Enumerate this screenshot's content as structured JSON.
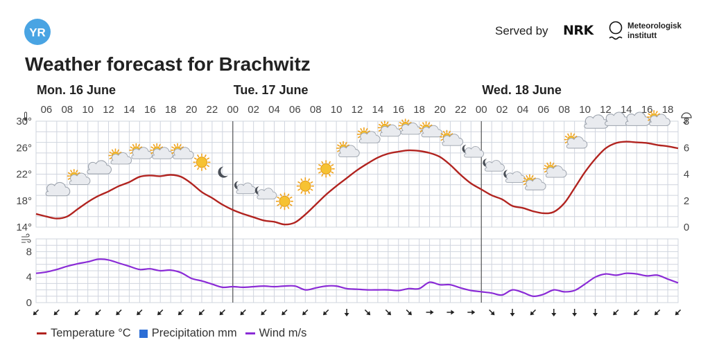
{
  "header": {
    "logo_text": "YR",
    "served_by": "Served by",
    "nrk_logo": "NRK",
    "met_name_line1": "Meteorologisk",
    "met_name_line2": "institutt",
    "title": "Weather forecast for Brachwitz"
  },
  "colors": {
    "temperature": "#b1231f",
    "precipitation": "#2c6ed6",
    "wind": "#8a2bd6",
    "grid": "#cfd4de",
    "logo": "#49a4e3"
  },
  "legend": {
    "temperature": "Temperature °C",
    "precipitation": "Precipitation mm",
    "wind": "Wind m/s"
  },
  "chart_data": {
    "type": "line",
    "days": [
      {
        "label": "Mon. 16 June",
        "start_hour": 5
      },
      {
        "label": "Tue. 17 June",
        "start_hour": 24
      },
      {
        "label": "Wed. 18 June",
        "start_hour": 48
      }
    ],
    "hour_ticks": [
      "06",
      "08",
      "10",
      "12",
      "14",
      "16",
      "18",
      "20",
      "22",
      "00",
      "02",
      "04",
      "06",
      "08",
      "10",
      "12",
      "14",
      "16",
      "18",
      "20",
      "22",
      "00",
      "02",
      "04",
      "06",
      "08",
      "10",
      "12",
      "14",
      "16",
      "18"
    ],
    "hour_tick_positions": [
      6,
      8,
      10,
      12,
      14,
      16,
      18,
      20,
      22,
      24,
      26,
      28,
      30,
      32,
      34,
      36,
      38,
      40,
      42,
      44,
      46,
      48,
      50,
      52,
      54,
      56,
      58,
      60,
      62,
      64,
      66
    ],
    "temperature_panel": {
      "y_ticks_left": [
        "30°",
        "26°",
        "22°",
        "18°",
        "14°"
      ],
      "y_tick_values_left": [
        30,
        26,
        22,
        18,
        14
      ],
      "y_ticks_right": [
        "8",
        "6",
        "4",
        "2",
        "0"
      ],
      "y_tick_values_right": [
        8,
        6,
        4,
        2,
        0
      ],
      "ylim": [
        14,
        30
      ],
      "right_ylim": [
        0,
        8
      ],
      "left_axis_icon": "thermometer-icon",
      "right_axis_icon": "umbrella-icon"
    },
    "wind_panel": {
      "y_ticks": [
        "8",
        "4",
        "0"
      ],
      "y_tick_values": [
        8,
        4,
        0
      ],
      "ylim": [
        0,
        10
      ],
      "axis_icon": "wind-icon"
    },
    "x_range": [
      5,
      67
    ],
    "series": [
      {
        "name": "Temperature °C",
        "unit": "°C",
        "x": [
          5,
          6,
          7,
          8,
          9,
          10,
          11,
          12,
          13,
          14,
          15,
          16,
          17,
          18,
          19,
          20,
          21,
          22,
          23,
          24,
          25,
          26,
          27,
          28,
          29,
          30,
          31,
          32,
          33,
          34,
          35,
          36,
          37,
          38,
          39,
          40,
          41,
          42,
          43,
          44,
          45,
          46,
          47,
          48,
          49,
          50,
          51,
          52,
          53,
          54,
          55,
          56,
          57,
          58,
          59,
          60,
          61,
          62,
          63,
          64,
          65,
          66,
          67
        ],
        "values": [
          16.0,
          15.6,
          15.3,
          15.6,
          16.7,
          17.8,
          18.7,
          19.4,
          20.2,
          20.8,
          21.6,
          21.8,
          21.7,
          21.9,
          21.6,
          20.6,
          19.3,
          18.4,
          17.4,
          16.6,
          16.0,
          15.5,
          15.0,
          14.8,
          14.4,
          14.7,
          15.9,
          17.4,
          18.9,
          20.2,
          21.4,
          22.6,
          23.6,
          24.5,
          25.1,
          25.4,
          25.6,
          25.5,
          25.2,
          24.6,
          23.4,
          21.9,
          20.6,
          19.7,
          18.8,
          18.2,
          17.2,
          16.9,
          16.4,
          16.1,
          16.3,
          17.6,
          19.9,
          22.3,
          24.3,
          25.9,
          26.7,
          26.9,
          26.8,
          26.7,
          26.4,
          26.2,
          25.9
        ]
      },
      {
        "name": "Precipitation mm",
        "unit": "mm",
        "x": [],
        "values": []
      },
      {
        "name": "Wind m/s",
        "unit": "m/s",
        "x": [
          5,
          6,
          7,
          8,
          9,
          10,
          11,
          12,
          13,
          14,
          15,
          16,
          17,
          18,
          19,
          20,
          21,
          22,
          23,
          24,
          25,
          26,
          27,
          28,
          29,
          30,
          31,
          32,
          33,
          34,
          35,
          36,
          37,
          38,
          39,
          40,
          41,
          42,
          43,
          44,
          45,
          46,
          47,
          48,
          49,
          50,
          51,
          52,
          53,
          54,
          55,
          56,
          57,
          58,
          59,
          60,
          61,
          62,
          63,
          64,
          65,
          66,
          67
        ],
        "values": [
          4.6,
          4.8,
          5.2,
          5.7,
          6.1,
          6.4,
          6.8,
          6.7,
          6.2,
          5.7,
          5.2,
          5.3,
          5.0,
          5.1,
          4.7,
          3.8,
          3.4,
          2.9,
          2.4,
          2.5,
          2.4,
          2.5,
          2.6,
          2.5,
          2.6,
          2.6,
          2.0,
          2.3,
          2.6,
          2.6,
          2.2,
          2.1,
          2.0,
          2.0,
          2.0,
          1.9,
          2.2,
          2.2,
          3.2,
          2.8,
          2.8,
          2.3,
          1.9,
          1.7,
          1.5,
          1.2,
          2.0,
          1.6,
          1.0,
          1.3,
          2.0,
          1.7,
          1.9,
          2.9,
          4.0,
          4.5,
          4.3,
          4.6,
          4.5,
          4.2,
          4.3,
          3.7,
          3.1
        ]
      }
    ],
    "weather_symbols": [
      {
        "x": 7,
        "icon": "cloudy-icon",
        "temp_anchor": 19.6
      },
      {
        "x": 9,
        "icon": "partly-cloudy-day-icon",
        "temp_anchor": 21.3
      },
      {
        "x": 11,
        "icon": "cloudy-icon",
        "temp_anchor": 22.9
      },
      {
        "x": 13,
        "icon": "partly-cloudy-day-icon",
        "temp_anchor": 24.4
      },
      {
        "x": 15,
        "icon": "partly-cloudy-day-icon",
        "temp_anchor": 25.2
      },
      {
        "x": 17,
        "icon": "partly-cloudy-day-icon",
        "temp_anchor": 25.2
      },
      {
        "x": 19,
        "icon": "partly-cloudy-day-icon",
        "temp_anchor": 25.2
      },
      {
        "x": 21,
        "icon": "sun-icon",
        "temp_anchor": 23.8
      },
      {
        "x": 23,
        "icon": "moon-icon",
        "temp_anchor": 22.3
      },
      {
        "x": 25,
        "icon": "partly-cloudy-night-icon",
        "temp_anchor": 19.9
      },
      {
        "x": 27,
        "icon": "partly-cloudy-night-icon",
        "temp_anchor": 19.1
      },
      {
        "x": 29,
        "icon": "sun-icon",
        "temp_anchor": 17.9
      },
      {
        "x": 31,
        "icon": "sun-icon",
        "temp_anchor": 20.2
      },
      {
        "x": 33,
        "icon": "sun-icon",
        "temp_anchor": 22.8
      },
      {
        "x": 35,
        "icon": "partly-cloudy-day-icon",
        "temp_anchor": 25.5
      },
      {
        "x": 37,
        "icon": "partly-cloudy-day-icon",
        "temp_anchor": 27.6
      },
      {
        "x": 39,
        "icon": "partly-cloudy-day-icon",
        "temp_anchor": 28.6
      },
      {
        "x": 41,
        "icon": "partly-cloudy-day-icon",
        "temp_anchor": 28.9
      },
      {
        "x": 43,
        "icon": "partly-cloudy-day-icon",
        "temp_anchor": 28.5
      },
      {
        "x": 45,
        "icon": "partly-cloudy-day-icon",
        "temp_anchor": 27.2
      },
      {
        "x": 47,
        "icon": "partly-cloudy-night-icon",
        "temp_anchor": 25.4
      },
      {
        "x": 49,
        "icon": "partly-cloudy-night-icon",
        "temp_anchor": 23.3
      },
      {
        "x": 51,
        "icon": "partly-cloudy-night-icon",
        "temp_anchor": 21.6
      },
      {
        "x": 53,
        "icon": "partly-cloudy-day-icon",
        "temp_anchor": 20.5
      },
      {
        "x": 55,
        "icon": "partly-cloudy-day-icon",
        "temp_anchor": 22.4
      },
      {
        "x": 57,
        "icon": "partly-cloudy-day-icon",
        "temp_anchor": 26.8
      },
      {
        "x": 59,
        "icon": "cloudy-icon",
        "temp_anchor": 29.8
      },
      {
        "x": 61,
        "icon": "cloudy-icon",
        "temp_anchor": 30.2
      },
      {
        "x": 63,
        "icon": "cloudy-icon",
        "temp_anchor": 30.2
      },
      {
        "x": 65,
        "icon": "partly-cloudy-day-icon",
        "temp_anchor": 30.2
      }
    ],
    "wind_direction_arrows": {
      "x": [
        5,
        7,
        9,
        11,
        13,
        15,
        17,
        19,
        21,
        23,
        25,
        27,
        29,
        31,
        33,
        35,
        37,
        39,
        41,
        43,
        45,
        47,
        49,
        51,
        53,
        55,
        57,
        59,
        61,
        63,
        65,
        67
      ],
      "rotation_deg": [
        135,
        135,
        135,
        135,
        135,
        135,
        135,
        135,
        135,
        135,
        135,
        135,
        135,
        135,
        135,
        90,
        45,
        45,
        45,
        0,
        0,
        0,
        45,
        90,
        135,
        90,
        90,
        90,
        135,
        135,
        135,
        135
      ]
    },
    "grid": true,
    "legend_position": "bottom-left"
  }
}
